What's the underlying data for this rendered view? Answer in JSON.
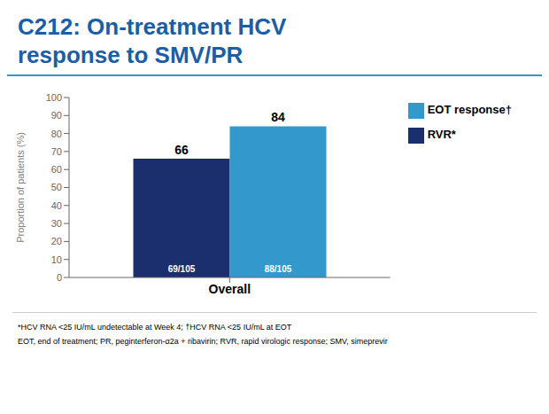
{
  "chart_data": {
    "type": "bar",
    "title": "C212: On-treatment HCV\nresponse to SMV/PR",
    "title_color": "#1B5EA6",
    "categories": [
      "Overall"
    ],
    "series": [
      {
        "name": "RVR*",
        "color": "#1B2F6E",
        "values": [
          66
        ],
        "annotations": [
          "69/105"
        ]
      },
      {
        "name": "EOT response†",
        "color": "#3399CC",
        "values": [
          84
        ],
        "annotations": [
          "88/105"
        ]
      }
    ],
    "ylabel": "Proportion of patients (%)",
    "ylim": [
      0,
      100
    ],
    "yticks": [
      0,
      10,
      20,
      30,
      40,
      50,
      60,
      70,
      80,
      90,
      100
    ],
    "data_labels": true,
    "grid": false,
    "legend": "right",
    "footnotes": [
      "*HCV RNA <25 IU/mL undetectable at Week 4; †HCV RNA <25 IU/mL at EOT",
      "EOT, end of treatment; PR, peginterferon-α2a + ribavirin; RVR, rapid virologic response; SMV, simeprevir"
    ]
  }
}
